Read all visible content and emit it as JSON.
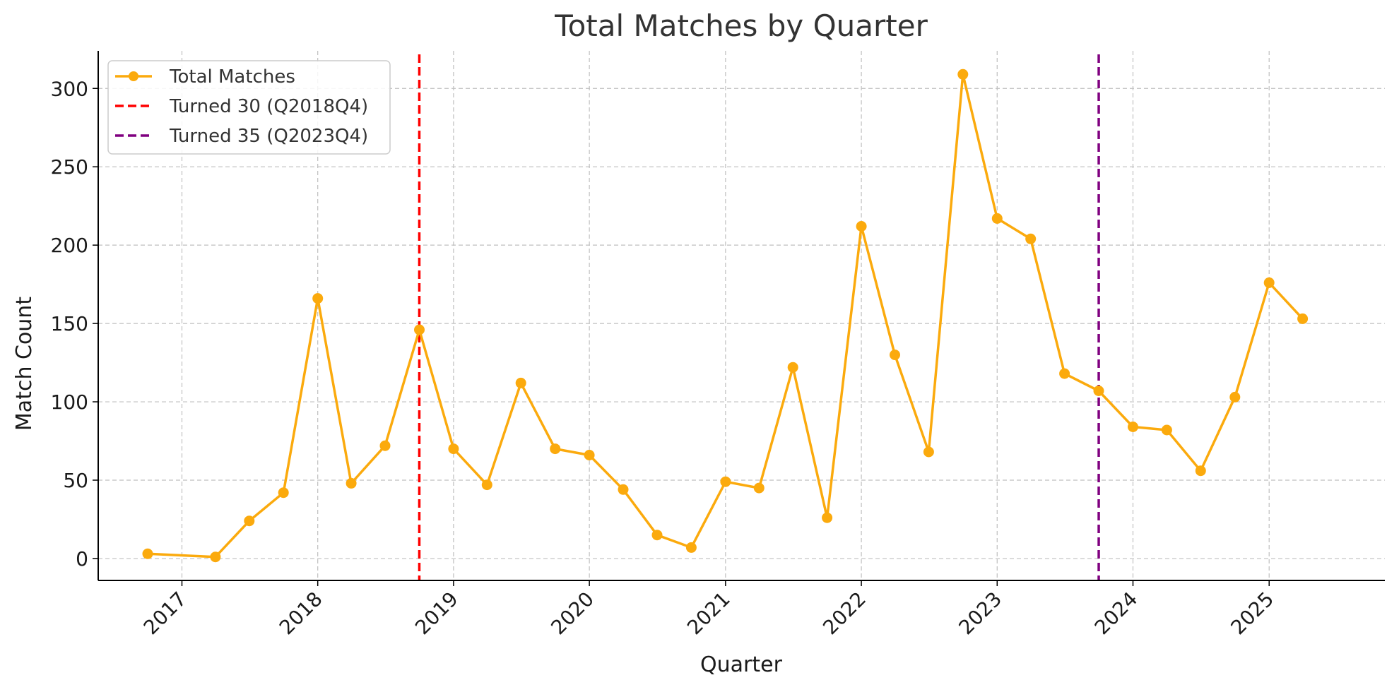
{
  "chart_data": {
    "type": "line",
    "title": "Total Matches by Quarter",
    "xlabel": "Quarter",
    "ylabel": "Match Count",
    "x_ticks": [
      "2017",
      "2018",
      "2019",
      "2020",
      "2021",
      "2022",
      "2023",
      "2024",
      "2025"
    ],
    "y_ticks": [
      "0",
      "50",
      "100",
      "150",
      "200",
      "250",
      "300"
    ],
    "ylim": [
      -14,
      324
    ],
    "grid": true,
    "legend_position": "top-left",
    "series": [
      {
        "name": "Total Matches",
        "color": "#FBAA0D",
        "marker": "circle",
        "x": [
          "2016-10-01",
          "2017-04-01",
          "2017-07-01",
          "2017-10-01",
          "2018-01-01",
          "2018-04-01",
          "2018-07-01",
          "2018-10-01",
          "2019-01-01",
          "2019-04-01",
          "2019-07-01",
          "2019-10-01",
          "2020-01-01",
          "2020-04-01",
          "2020-07-01",
          "2020-10-01",
          "2021-01-01",
          "2021-04-01",
          "2021-07-01",
          "2021-10-01",
          "2022-01-01",
          "2022-04-01",
          "2022-07-01",
          "2022-10-01",
          "2023-01-01",
          "2023-04-01",
          "2023-07-01",
          "2023-10-01",
          "2024-01-01",
          "2024-04-01",
          "2024-07-01",
          "2024-10-01",
          "2025-01-01",
          "2025-04-01"
        ],
        "values": [
          3,
          1,
          24,
          42,
          166,
          48,
          72,
          146,
          70,
          47,
          112,
          70,
          66,
          44,
          15,
          7,
          49,
          45,
          122,
          26,
          212,
          130,
          68,
          309,
          217,
          204,
          118,
          107,
          84,
          82,
          56,
          103,
          176,
          153
        ]
      }
    ],
    "reference_lines": [
      {
        "name": "Turned 30 (Q2018Q4)",
        "x": "2018-10-01",
        "color": "#FF0000",
        "style": "dashed"
      },
      {
        "name": "Turned 35 (Q2023Q4)",
        "x": "2023-10-01",
        "color": "#800080",
        "style": "dashed"
      }
    ],
    "legend": [
      "Total Matches",
      "Turned 30 (Q2018Q4)",
      "Turned 35 (Q2023Q4)"
    ]
  }
}
